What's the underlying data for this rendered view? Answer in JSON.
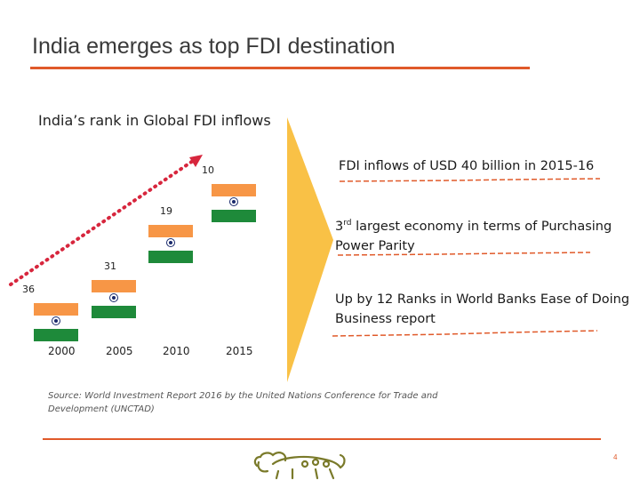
{
  "title": "India emerges as top FDI destination",
  "subtitle": "India’s rank in Global FDI inflows",
  "colors": {
    "accent": "#e05a2a",
    "saffron": "#f79646",
    "green": "#1e8a3a",
    "chakra": "#1a2a6c",
    "arrow": "#f9c146"
  },
  "chart_data": {
    "type": "bar",
    "title": "India’s rank in Global FDI inflows",
    "categories": [
      "2000",
      "2005",
      "2010",
      "2015"
    ],
    "values": [
      36,
      31,
      19,
      10
    ],
    "value_meaning": "rank (lower is better)"
  },
  "points": [
    {
      "text": "FDI inflows of USD 40 billion in 2015-16"
    },
    {
      "pre": "3",
      "sup": "rd",
      "text": " largest economy in terms of Purchasing Power Parity"
    },
    {
      "text": "Up by 12 Ranks in World Banks Ease of Doing Business report"
    }
  ],
  "source": "Source: World Investment Report 2016 by the United Nations Conference for Trade and Development (UNCTAD)",
  "logo": {
    "icon": "lion-icon"
  },
  "page_number": "4"
}
